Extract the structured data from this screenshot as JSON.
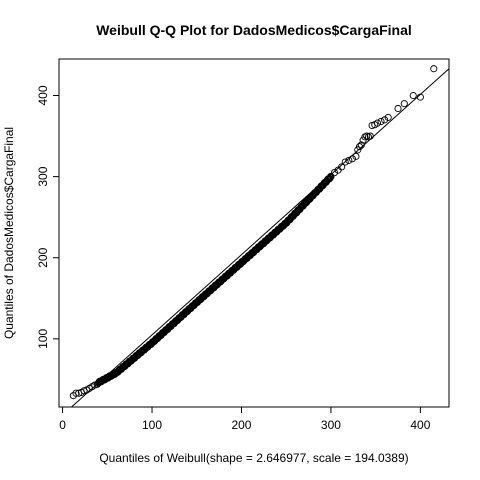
{
  "chart_data": {
    "type": "scatter",
    "title": "Weibull Q-Q Plot for DadosMedicos$CargaFinal",
    "xlabel": "Quantiles of Weibull(shape = 2.646977, scale = 194.0389)",
    "ylabel": "Quantiles of DadosMedicos$CargaFinal",
    "xlim": [
      -4,
      432
    ],
    "ylim": [
      16,
      445
    ],
    "x_ticks": [
      0,
      100,
      200,
      300,
      400
    ],
    "y_ticks": [
      100,
      200,
      300,
      400
    ],
    "x_tick_labels": [
      "0",
      "100",
      "200",
      "300",
      "400"
    ],
    "y_tick_labels": [
      "100",
      "200",
      "300",
      "400"
    ],
    "grid": false,
    "legend": "none",
    "reference_line": {
      "x": [
        10,
        432
      ],
      "y": [
        16,
        433
      ]
    },
    "marker": "open-circle",
    "curve_anchors": {
      "x": [
        10,
        30,
        60,
        100,
        150,
        200,
        250,
        300,
        330,
        360,
        380,
        420
      ],
      "y": [
        30,
        40,
        58,
        95,
        145,
        194,
        243,
        300,
        330,
        365,
        385,
        430
      ]
    },
    "dense_range": [
      40,
      300
    ],
    "tail_points": [
      [
        12,
        30
      ],
      [
        15,
        33
      ],
      [
        18,
        33
      ],
      [
        21,
        34
      ],
      [
        24,
        36
      ],
      [
        27,
        37
      ],
      [
        30,
        39
      ],
      [
        33,
        41
      ],
      [
        36,
        43
      ],
      [
        39,
        44
      ],
      [
        300,
        300
      ],
      [
        304,
        305
      ],
      [
        308,
        308
      ],
      [
        312,
        312
      ],
      [
        316,
        318
      ],
      [
        320,
        320
      ],
      [
        324,
        322
      ],
      [
        328,
        325
      ],
      [
        330,
        333
      ],
      [
        332,
        337
      ],
      [
        334,
        339
      ],
      [
        336,
        345
      ],
      [
        338,
        349
      ],
      [
        340,
        350
      ],
      [
        342,
        349
      ],
      [
        344,
        350
      ],
      [
        346,
        363
      ],
      [
        349,
        364
      ],
      [
        352,
        366
      ],
      [
        356,
        368
      ],
      [
        360,
        370
      ],
      [
        364,
        373
      ],
      [
        375,
        384
      ],
      [
        382,
        390
      ],
      [
        392,
        400
      ],
      [
        400,
        398
      ],
      [
        415,
        433
      ]
    ]
  }
}
